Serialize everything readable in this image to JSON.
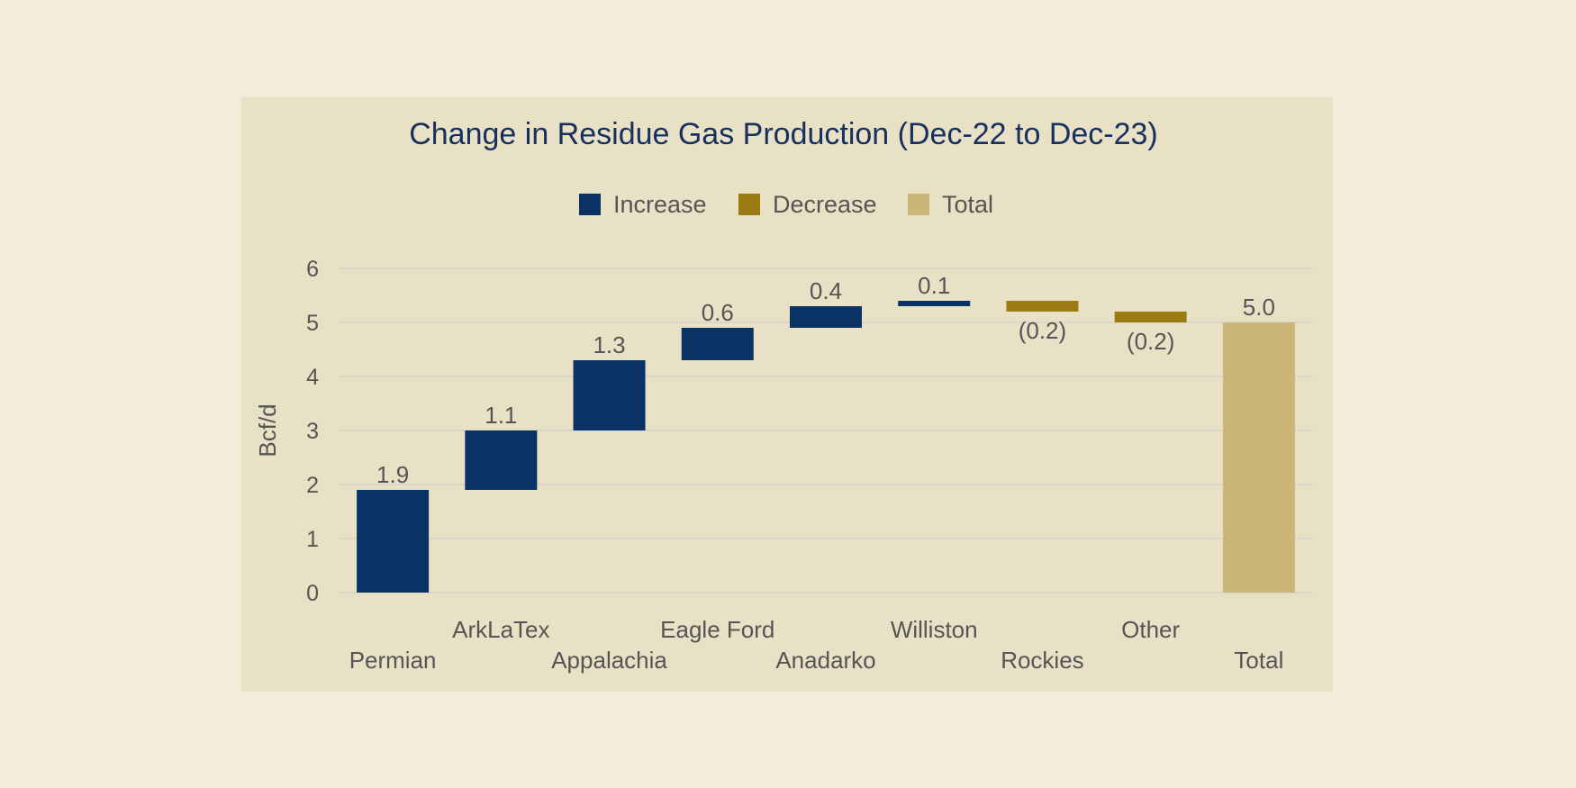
{
  "chart_data": {
    "type": "bar",
    "subtype": "waterfall",
    "title": "Change in Residue Gas Production (Dec-22 to Dec-23)",
    "ylabel": "Bcf/d",
    "ylim": [
      0,
      6
    ],
    "yticks": [
      0,
      1,
      2,
      3,
      4,
      5,
      6
    ],
    "grid": true,
    "legend_position": "top",
    "legend": [
      {
        "name": "Increase",
        "color": "#0b3265"
      },
      {
        "name": "Decrease",
        "color": "#9c7b14"
      },
      {
        "name": "Total",
        "color": "#cbb577"
      }
    ],
    "categories": [
      "Permian",
      "ArkLaTex",
      "Appalachia",
      "Eagle Ford",
      "Anadarko",
      "Williston",
      "Rockies",
      "Other",
      "Total"
    ],
    "values": [
      1.9,
      1.1,
      1.3,
      0.6,
      0.4,
      0.1,
      -0.2,
      -0.2,
      5.0
    ],
    "value_labels": [
      "1.9",
      "1.1",
      "1.3",
      "0.6",
      "0.4",
      "0.1",
      "(0.2)",
      "(0.2)",
      "5.0"
    ],
    "kinds": [
      "increase",
      "increase",
      "increase",
      "increase",
      "increase",
      "increase",
      "decrease",
      "decrease",
      "total"
    ]
  }
}
